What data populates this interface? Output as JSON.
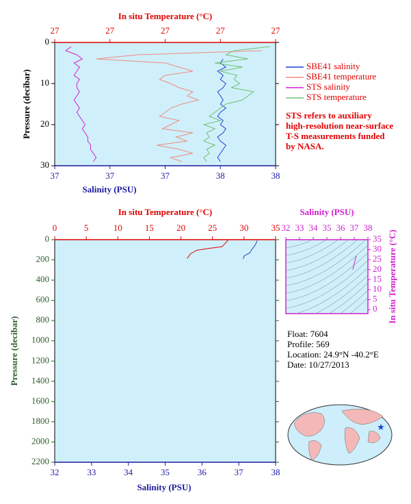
{
  "chart_data": [
    {
      "type": "profile",
      "temperature_label": "In situ Temperature (°C)",
      "salinity_label": "Salinity (PSU)",
      "y_label": "Pressure (decibar)",
      "temperature_lim": [
        26.6,
        27.4
      ],
      "temperature_ticks": [
        {
          "value": 26.6,
          "label": "27"
        },
        {
          "value": 26.8,
          "label": "27"
        },
        {
          "value": 27.0,
          "label": "27"
        },
        {
          "value": 27.2,
          "label": "27"
        },
        {
          "value": 27.4,
          "label": "27"
        }
      ],
      "salinity_lim": [
        37.0,
        37.8
      ],
      "salinity_ticks": [
        {
          "value": 37.0,
          "label": "37"
        },
        {
          "value": 37.2,
          "label": "37"
        },
        {
          "value": 37.4,
          "label": "37"
        },
        {
          "value": 37.6,
          "label": "38"
        },
        {
          "value": 37.8,
          "label": "38"
        }
      ],
      "ylim": [
        0,
        30
      ],
      "yticks": [
        0,
        10,
        20,
        30
      ],
      "series": [
        {
          "name": "SBE41 salinity",
          "color": "#1f3fd0",
          "axis": "salinity",
          "pressure": [
            4,
            5,
            6,
            7,
            8,
            9,
            10,
            11,
            12,
            13,
            14,
            15,
            16,
            17,
            18,
            19,
            20,
            21,
            22,
            23,
            24,
            25,
            26,
            27,
            28,
            29
          ],
          "values": [
            37.61,
            37.6,
            37.62,
            37.59,
            37.61,
            37.6,
            37.62,
            37.61,
            37.59,
            37.6,
            37.61,
            37.6,
            37.62,
            37.6,
            37.59,
            37.61,
            37.6,
            37.62,
            37.61,
            37.59,
            37.6,
            37.62,
            37.61,
            37.6,
            37.59,
            37.6
          ]
        },
        {
          "name": "SBE41 temperature",
          "color": "#f08a80",
          "axis": "temperature",
          "pressure": [
            2,
            3,
            4,
            5,
            6,
            7,
            8,
            9,
            10,
            11,
            12,
            13,
            14,
            15,
            16,
            17,
            18,
            19,
            20,
            21,
            22,
            23,
            24,
            25,
            26,
            27,
            28,
            29
          ],
          "values": [
            27.35,
            26.9,
            26.75,
            27.0,
            27.05,
            27.1,
            27.0,
            26.98,
            27.02,
            27.05,
            27.1,
            27.08,
            27.12,
            27.06,
            27.02,
            27.0,
            26.98,
            27.05,
            27.02,
            26.99,
            27.1,
            27.04,
            27.08,
            26.97,
            27.05,
            27.1,
            27.02,
            27.06
          ]
        },
        {
          "name": "STS salinity",
          "color": "#d020d0",
          "axis": "salinity",
          "pressure": [
            1,
            2,
            3,
            4,
            5,
            6,
            7,
            8,
            9,
            10,
            11,
            12,
            13,
            14,
            15,
            16,
            17,
            18,
            19,
            20,
            21,
            22,
            23,
            24,
            25,
            26,
            27,
            28,
            29
          ],
          "values": [
            37.06,
            37.04,
            37.08,
            37.1,
            37.07,
            37.09,
            37.08,
            37.07,
            37.09,
            37.08,
            37.08,
            37.09,
            37.08,
            37.07,
            37.08,
            37.09,
            37.08,
            37.09,
            37.1,
            37.11,
            37.1,
            37.11,
            37.12,
            37.12,
            37.13,
            37.13,
            37.14,
            37.15,
            37.14
          ]
        },
        {
          "name": "STS temperature",
          "color": "#70c070",
          "axis": "temperature",
          "pressure": [
            1,
            2,
            3,
            4,
            5,
            6,
            7,
            8,
            9,
            10,
            11,
            12,
            13,
            14,
            15,
            16,
            17,
            18,
            19,
            20,
            21,
            22,
            23,
            24,
            25,
            26,
            27,
            28,
            29
          ],
          "values": [
            27.38,
            27.25,
            27.22,
            27.3,
            27.18,
            27.28,
            27.2,
            27.26,
            27.25,
            27.27,
            27.24,
            27.32,
            27.3,
            27.28,
            27.22,
            27.2,
            27.18,
            27.16,
            27.2,
            27.14,
            27.18,
            27.15,
            27.16,
            27.14,
            27.18,
            27.15,
            27.16,
            27.14,
            27.15
          ]
        }
      ],
      "annotation": [
        "STS refers to auxiliary",
        "high-resolution near-surface",
        "T-S measurements funded",
        "by NASA."
      ]
    },
    {
      "type": "profile",
      "temperature_label": "In situ Temperature (°C)",
      "salinity_label": "Salinity (PSU)",
      "y_label": "Pressure (decibar)",
      "temperature_lim": [
        0,
        35
      ],
      "temperature_ticks": [
        0,
        5,
        10,
        15,
        20,
        25,
        30,
        35
      ],
      "salinity_lim": [
        32,
        38
      ],
      "salinity_ticks": [
        32,
        33,
        34,
        35,
        36,
        37,
        38
      ],
      "ylim": [
        0,
        2200
      ],
      "yticks": [
        0,
        200,
        400,
        600,
        800,
        1000,
        1200,
        1400,
        1600,
        1800,
        2000,
        2200
      ],
      "series": [
        {
          "color": "#e00000",
          "axis": "temperature",
          "pressure": [
            0,
            10,
            70,
            85,
            105,
            140,
            185
          ],
          "values": [
            27.5,
            27.4,
            26.5,
            24.5,
            22.5,
            21.5,
            21.0
          ]
        },
        {
          "color": "#1f3fd0",
          "axis": "salinity",
          "pressure": [
            10,
            50,
            100,
            130,
            160,
            190
          ],
          "values": [
            37.5,
            37.45,
            37.35,
            37.3,
            37.15,
            37.12
          ]
        }
      ]
    },
    {
      "type": "ts",
      "x_label": "Salinity (PSU)",
      "y_label": "In situ Temperature (°C)",
      "xlim": [
        32,
        38
      ],
      "xticks": [
        32,
        33,
        34,
        35,
        36,
        37,
        38
      ],
      "ylim": [
        -2,
        35
      ],
      "yticks": [
        0,
        5,
        10,
        15,
        20,
        25,
        30,
        35
      ],
      "series": [
        {
          "color": "#d020d0",
          "x": [
            36.9,
            37.0,
            37.15
          ],
          "values": [
            20,
            23,
            27
          ]
        }
      ]
    }
  ],
  "float_info": [
    "Float:  7604",
    "Profile:  569",
    "Location:  24.9°N  -40.2°E",
    "Date:  10/27/2013"
  ]
}
